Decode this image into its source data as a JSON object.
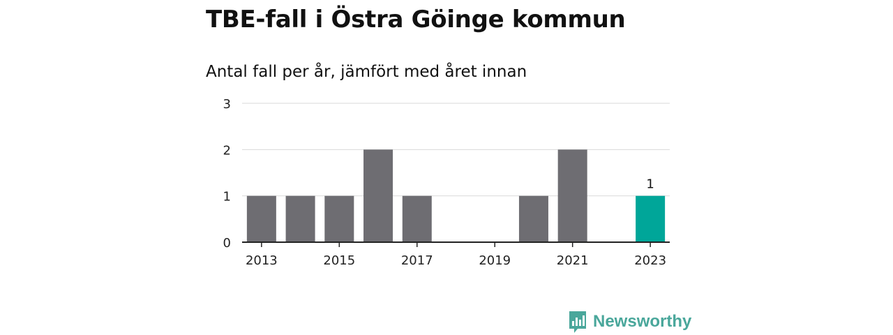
{
  "chart_data": {
    "type": "bar",
    "title": "TBE-fall i Östra Göinge kommun",
    "subtitle": "Antal fall per år, jämfört med året innan",
    "categories": [
      2013,
      2014,
      2015,
      2016,
      2017,
      2018,
      2019,
      2020,
      2021,
      2022,
      2023
    ],
    "values": [
      1,
      1,
      1,
      2,
      1,
      0,
      0,
      1,
      2,
      0,
      1
    ],
    "x_tick_labels": [
      "2013",
      "2015",
      "2017",
      "2019",
      "2021",
      "2023"
    ],
    "y_ticks": [
      0,
      1,
      2,
      3
    ],
    "ylim": [
      0,
      3
    ],
    "grid": true,
    "highlight_category": 2023,
    "highlight_label": "1",
    "colors": {
      "bar": "#6e6d72",
      "highlight": "#00a699",
      "grid": "#d9d9d9",
      "axis": "#222222"
    }
  },
  "brand": {
    "name": "Newsworthy",
    "icon": "bar-chart-speech-bubble-icon",
    "color": "#4aa79b"
  }
}
